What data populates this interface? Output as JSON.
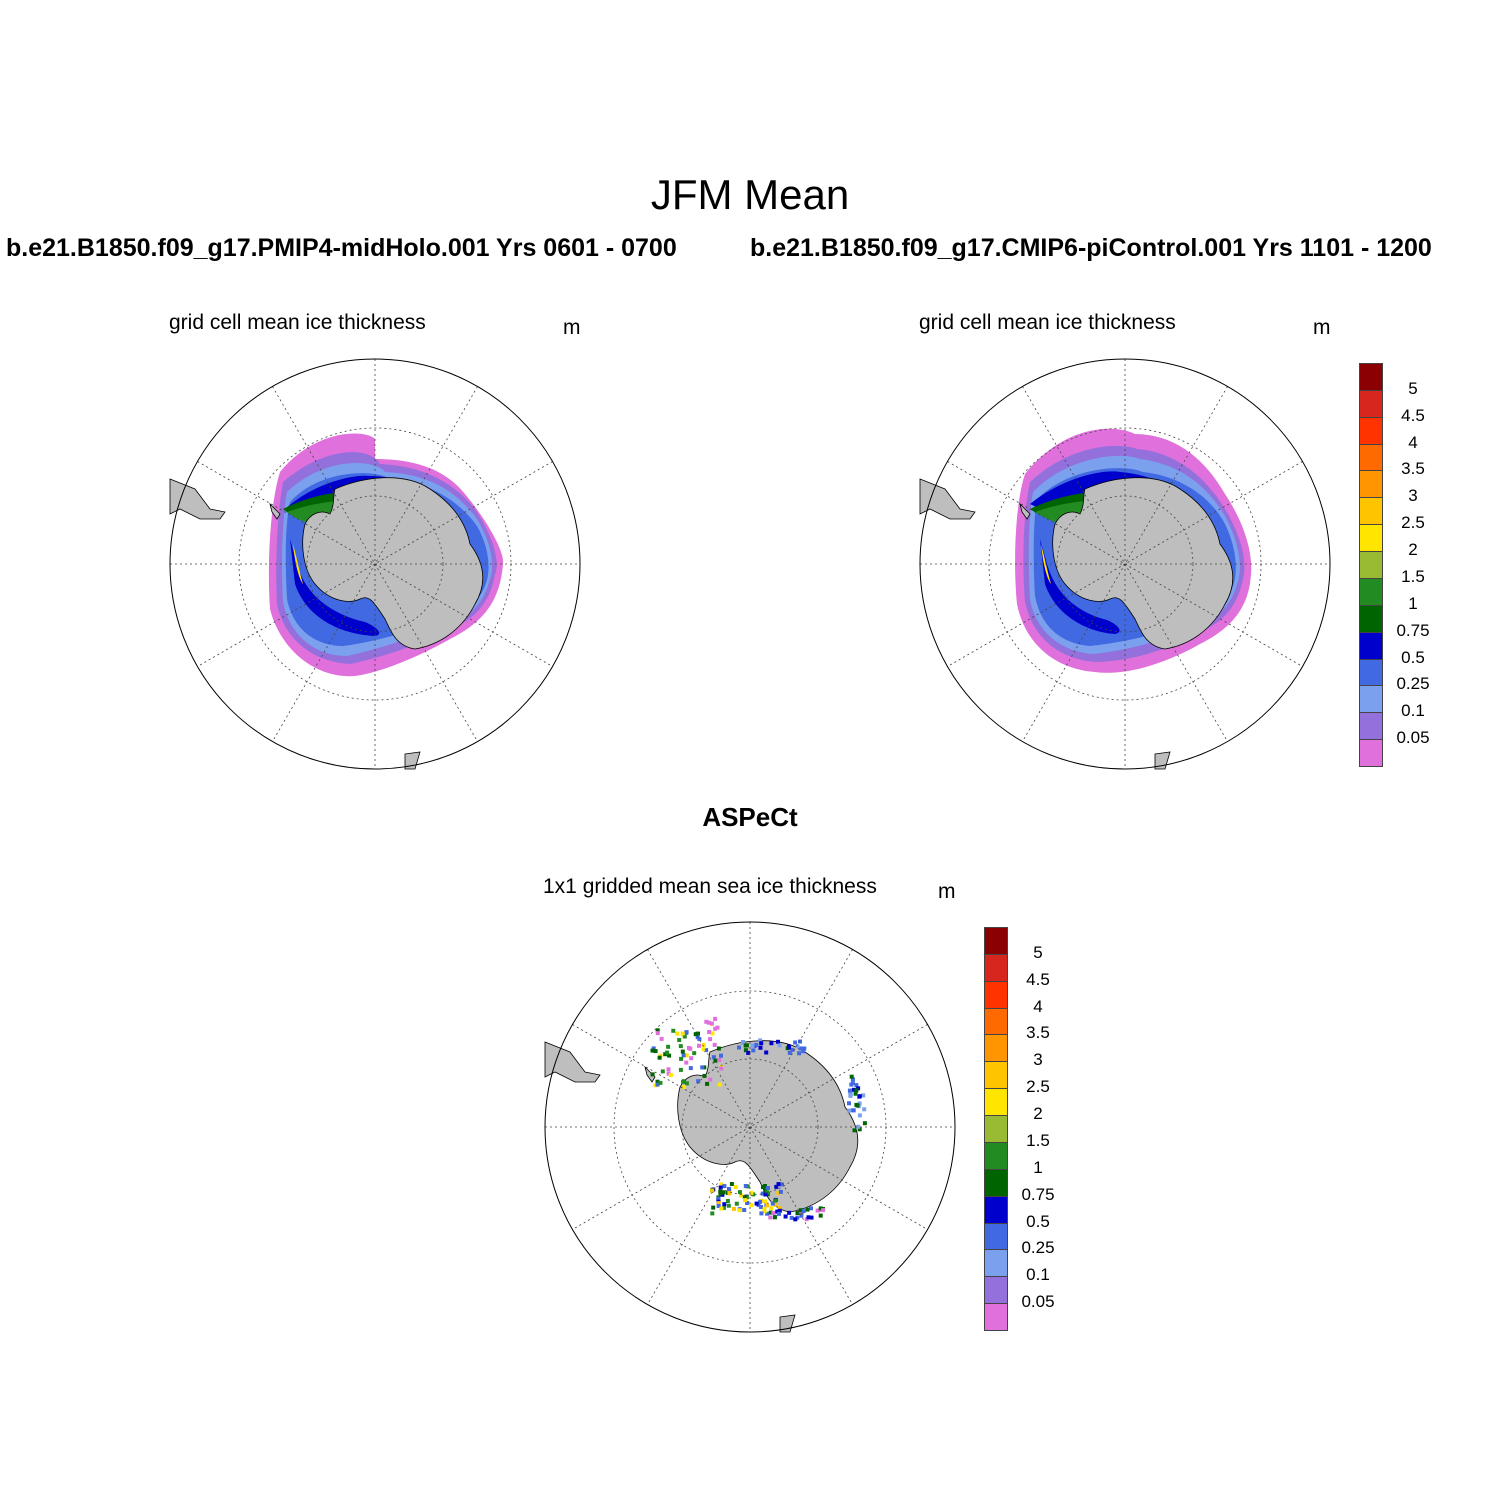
{
  "figure": {
    "title": "JFM Mean",
    "runs": [
      {
        "title": "b.e21.B1850.f09_g17.PMIP4-midHolo.001  Yrs 0601 - 0700",
        "variable": "grid cell mean ice thickness",
        "units": "m"
      },
      {
        "title": "b.e21.B1850.f09_g17.CMIP6-piControl.001  Yrs 1101 - 1200",
        "variable": "grid cell mean ice thickness",
        "units": "m"
      }
    ],
    "observation": {
      "title": "ASPeCt",
      "variable": "1x1 gridded mean sea ice thickness",
      "units": "m"
    }
  },
  "colorbar": {
    "levels": [
      "5",
      "4.5",
      "4",
      "3.5",
      "3",
      "2.5",
      "2",
      "1.5",
      "1",
      "0.75",
      "0.5",
      "0.25",
      "0.1",
      "0.05"
    ],
    "colors": [
      "#8b0000",
      "#d7261e",
      "#ff3300",
      "#ff6a00",
      "#ff9500",
      "#ffc400",
      "#ffe500",
      "#99bb33",
      "#228b22",
      "#006400",
      "#0000cd",
      "#4169e1",
      "#7ba0ee",
      "#9370db",
      "#e070dc"
    ]
  },
  "map_style": {
    "projection": "south polar stereographic",
    "land_color": "#bebebe",
    "ocean_color": "#ffffff",
    "graticule": "dotted"
  }
}
